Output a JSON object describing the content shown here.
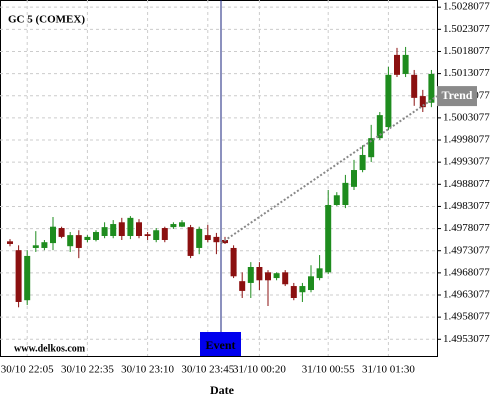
{
  "chart_data": {
    "type": "candlestick",
    "title": "GC 5 (COMEX)",
    "x_label": "Date",
    "watermark": "www.delkos.com",
    "categories": [
      null,
      null,
      "30/10 22:05",
      null,
      null,
      null,
      null,
      null,
      null,
      "30/10 22:35",
      null,
      null,
      null,
      null,
      null,
      null,
      "30/10 23:10",
      null,
      null,
      null,
      null,
      null,
      null,
      "30/10 23:45",
      null,
      null,
      null,
      null,
      null,
      "31/10 00:20",
      null,
      null,
      null,
      null,
      null,
      null,
      null,
      "31/10 00:55",
      null,
      null,
      null,
      null,
      null,
      null,
      "31/10 01:30",
      null,
      null,
      null,
      null,
      null
    ],
    "open": [
      1.49752,
      1.49732,
      1.49619,
      1.49737,
      1.49737,
      1.49748,
      1.49782,
      1.49741,
      1.49766,
      1.49755,
      1.49755,
      1.49764,
      1.49764,
      1.49795,
      1.49764,
      1.49795,
      1.49768,
      1.49755,
      1.49782,
      1.49784,
      1.49785,
      1.49784,
      1.49737,
      1.49766,
      1.49762,
      1.49755,
      1.49737,
      1.49662,
      1.49658,
      1.49694,
      1.49682,
      1.49669,
      1.49682,
      1.49651,
      1.49637,
      1.49642,
      1.49669,
      1.49682,
      1.49834,
      1.49834,
      1.49875,
      1.49913,
      1.49942,
      1.49985,
      1.5001,
      1.50173,
      1.5013,
      1.50128,
      1.5008,
      1.50065
    ],
    "high": [
      1.49757,
      1.49743,
      1.49732,
      1.49775,
      1.49755,
      1.49807,
      1.49785,
      1.49773,
      1.49777,
      1.49766,
      1.49777,
      1.49795,
      1.498,
      1.49805,
      1.49809,
      1.49802,
      1.49773,
      1.49782,
      1.49785,
      1.49795,
      1.498,
      1.49789,
      1.49785,
      1.49789,
      1.49771,
      1.49762,
      1.49743,
      1.49682,
      1.49705,
      1.49705,
      1.49687,
      1.49682,
      1.49687,
      1.49658,
      1.49658,
      1.49698,
      1.49721,
      1.49868,
      1.49863,
      1.49902,
      1.49936,
      1.49969,
      1.50015,
      1.50044,
      1.50146,
      1.50189,
      1.50191,
      1.50139,
      1.50094,
      1.50139
    ],
    "low": [
      1.49741,
      1.49603,
      1.49608,
      1.49728,
      1.49732,
      1.49732,
      1.49759,
      1.49728,
      1.49714,
      1.4975,
      1.49752,
      1.49759,
      1.49759,
      1.49755,
      1.49757,
      1.49759,
      1.49755,
      1.4975,
      1.4975,
      1.4978,
      1.49784,
      1.49714,
      1.49723,
      1.4975,
      1.49723,
      1.49746,
      1.49669,
      1.49624,
      1.49624,
      1.49642,
      1.49606,
      1.49664,
      1.49651,
      1.49619,
      1.49615,
      1.49637,
      1.49664,
      1.49678,
      1.49832,
      1.49827,
      1.49868,
      1.49908,
      1.49931,
      1.49981,
      1.50003,
      1.50123,
      1.50123,
      1.50058,
      1.50044,
      1.50055
    ],
    "close": [
      1.49746,
      1.49615,
      1.49719,
      1.49743,
      1.4975,
      1.49785,
      1.49762,
      1.49766,
      1.49737,
      1.49762,
      1.49773,
      1.49784,
      1.49791,
      1.49764,
      1.49805,
      1.49764,
      1.49764,
      1.49777,
      1.49755,
      1.49791,
      1.49795,
      1.49719,
      1.4978,
      1.49755,
      1.4975,
      1.49748,
      1.49673,
      1.4964,
      1.49694,
      1.49664,
      1.49664,
      1.4968,
      1.49655,
      1.49624,
      1.49651,
      1.49673,
      1.49691,
      1.49834,
      1.49856,
      1.49884,
      1.49913,
      1.49947,
      1.49985,
      1.50037,
      1.50128,
      1.50128,
      1.50173,
      1.50076,
      1.50055,
      1.5013
    ],
    "up_color": "#1e8c1e",
    "down_color": "#8b1010",
    "ylim": [
      1.49493,
      1.50297
    ],
    "yticks": [
      1.4953077,
      1.4958077,
      1.4963077,
      1.4968077,
      1.4973077,
      1.4978077,
      1.4983077,
      1.4988077,
      1.4993077,
      1.4998077,
      1.5003077,
      1.5008077,
      1.5013077,
      1.5018077,
      1.5023077,
      1.5028077
    ],
    "grid": true,
    "event": {
      "label": "Event"
    },
    "trend": {
      "label": "Trend",
      "start": 1.49748,
      "end": 1.5008
    }
  }
}
